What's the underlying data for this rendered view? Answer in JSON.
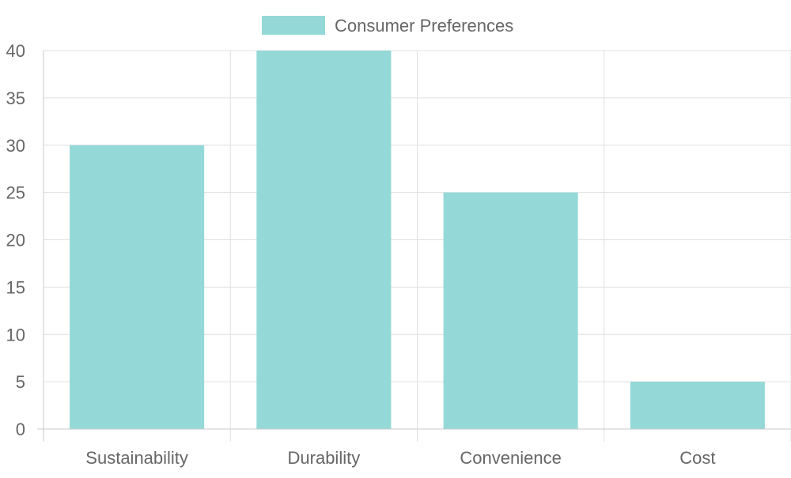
{
  "chart_data": {
    "type": "bar",
    "categories": [
      "Sustainability",
      "Durability",
      "Convenience",
      "Cost"
    ],
    "series": [
      {
        "name": "Consumer Preferences",
        "values": [
          30,
          40,
          25,
          5
        ],
        "color": "#94d9d7"
      }
    ],
    "ylim": [
      0,
      40
    ],
    "yticks": [
      0,
      5,
      10,
      15,
      20,
      25,
      30,
      35,
      40
    ],
    "grid": true,
    "legend_position": "top-center",
    "title": "",
    "xlabel": "",
    "ylabel": ""
  }
}
